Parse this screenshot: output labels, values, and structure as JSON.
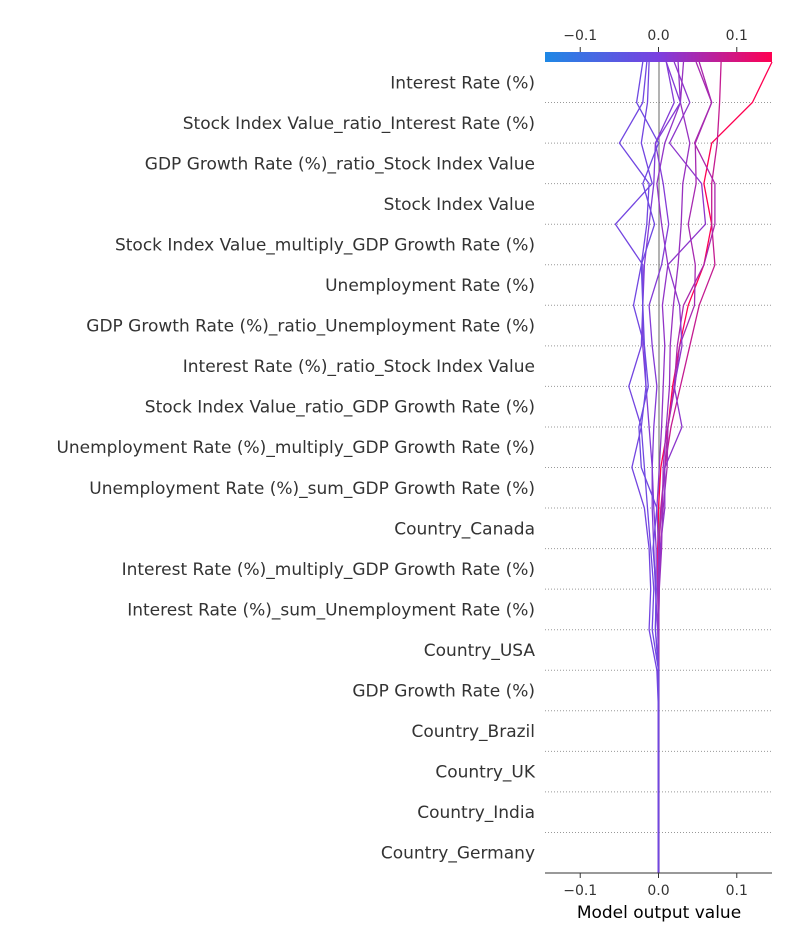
{
  "chart_data": {
    "type": "line",
    "subtype": "shap-decision-plot",
    "xlabel": "Model output value",
    "xlim": [
      -0.145,
      0.145
    ],
    "base_value": 0.0,
    "x_ticks": [
      {
        "value": -0.1,
        "label": "−0.1"
      },
      {
        "value": 0.0,
        "label": "0.0"
      },
      {
        "value": 0.1,
        "label": "0.1"
      }
    ],
    "colorbar": {
      "colors": [
        "#1e88e5",
        "#7b3fe0",
        "#ff0051"
      ],
      "ticks": [
        {
          "value": -0.1,
          "label": "−0.1"
        },
        {
          "value": 0.0,
          "label": "0.0"
        },
        {
          "value": 0.1,
          "label": "0.1"
        }
      ]
    },
    "features": [
      "Interest Rate (%)",
      "Stock Index Value_ratio_Interest Rate (%)",
      "GDP Growth Rate (%)_ratio_Stock Index Value",
      "Stock Index Value",
      "Stock Index Value_multiply_GDP Growth Rate (%)",
      "Unemployment Rate (%)",
      "GDP Growth Rate (%)_ratio_Unemployment Rate (%)",
      "Interest Rate (%)_ratio_Stock Index Value",
      "Stock Index Value_ratio_GDP Growth Rate (%)",
      "Unemployment Rate (%)_multiply_GDP Growth Rate (%)",
      "Unemployment Rate (%)_sum_GDP Growth Rate (%)",
      "Country_Canada",
      "Interest Rate (%)_multiply_GDP Growth Rate (%)",
      "Interest Rate (%)_sum_Unemployment Rate (%)",
      "Country_USA",
      "GDP Growth Rate (%)",
      "Country_Brazil",
      "Country_UK",
      "Country_India",
      "Country_Germany"
    ],
    "series": [
      {
        "values": [
          0.0,
          0.0,
          0.0,
          0.0,
          0.0,
          0.0,
          -0.001,
          -0.001,
          0.0,
          0.003,
          0.012,
          0.018,
          0.027,
          0.038,
          0.058,
          0.068,
          0.058,
          0.068,
          0.12,
          0.145
        ]
      },
      {
        "values": [
          0.0,
          0.0,
          0.0,
          0.0,
          0.0,
          0.0,
          0.0,
          0.001,
          0.003,
          0.008,
          0.016,
          0.028,
          0.04,
          0.052,
          0.072,
          0.068,
          0.068,
          0.075,
          0.078,
          0.08
        ]
      },
      {
        "values": [
          0.0,
          0.0,
          0.0,
          0.0,
          0.0,
          0.0,
          0.001,
          0.0,
          0.004,
          0.008,
          0.012,
          0.02,
          0.024,
          0.032,
          0.058,
          0.072,
          0.072,
          0.046,
          0.068,
          0.052
        ]
      },
      {
        "values": [
          0.0,
          0.0,
          0.0,
          0.0,
          0.0,
          0.0,
          0.0,
          0.003,
          0.006,
          0.011,
          0.012,
          0.021,
          0.027,
          0.046,
          0.047,
          0.038,
          0.048,
          0.047,
          0.068,
          0.048
        ]
      },
      {
        "values": [
          0.0,
          0.0,
          0.0,
          0.0,
          0.0,
          0.0,
          0.0,
          0.002,
          0.008,
          0.008,
          0.03,
          0.02,
          0.03,
          0.027,
          0.012,
          0.06,
          0.055,
          0.014,
          0.04,
          0.02
        ]
      },
      {
        "values": [
          0.0,
          0.0,
          0.0,
          0.0,
          0.0,
          0.0,
          0.001,
          0.004,
          0.005,
          0.006,
          0.01,
          0.014,
          0.015,
          0.019,
          0.025,
          0.029,
          0.031,
          0.04,
          0.028,
          0.032
        ]
      },
      {
        "values": [
          0.0,
          0.0,
          0.0,
          0.0,
          0.0,
          0.0,
          -0.001,
          0.0,
          -0.002,
          0.001,
          0.004,
          0.006,
          0.008,
          0.005,
          0.012,
          0.004,
          -0.002,
          0.008,
          0.028,
          0.025
        ]
      },
      {
        "values": [
          0.0,
          0.0,
          0.0,
          0.0,
          0.0,
          -0.004,
          -0.003,
          -0.003,
          -0.006,
          -0.008,
          -0.006,
          -0.002,
          -0.008,
          -0.012,
          0.004,
          0.013,
          0.006,
          -0.004,
          0.02,
          0.01
        ]
      },
      {
        "values": [
          0.0,
          0.0,
          0.0,
          0.0,
          0.0,
          -0.001,
          -0.004,
          -0.006,
          -0.008,
          -0.008,
          -0.012,
          -0.016,
          -0.02,
          -0.02,
          -0.018,
          -0.012,
          -0.006,
          -0.004,
          0.028,
          0.01
        ]
      },
      {
        "values": [
          0.0,
          0.0,
          0.0,
          0.0,
          0.0,
          -0.008,
          -0.006,
          -0.01,
          -0.014,
          -0.018,
          -0.022,
          -0.016,
          -0.018,
          -0.032,
          -0.022,
          -0.015,
          -0.012,
          -0.05,
          -0.02,
          -0.015
        ]
      },
      {
        "values": [
          0.0,
          0.0,
          0.0,
          0.0,
          -0.002,
          -0.012,
          -0.01,
          -0.012,
          -0.018,
          -0.034,
          -0.022,
          -0.038,
          -0.022,
          -0.02,
          -0.02,
          -0.055,
          -0.008,
          -0.022,
          -0.014,
          -0.012
        ]
      },
      {
        "values": [
          0.0,
          0.0,
          0.0,
          0.0,
          0.0,
          -0.004,
          -0.003,
          -0.007,
          -0.002,
          -0.022,
          -0.025,
          -0.013,
          -0.018,
          -0.02,
          -0.022,
          -0.005,
          -0.02,
          0.0,
          -0.028,
          -0.02
        ]
      }
    ]
  }
}
